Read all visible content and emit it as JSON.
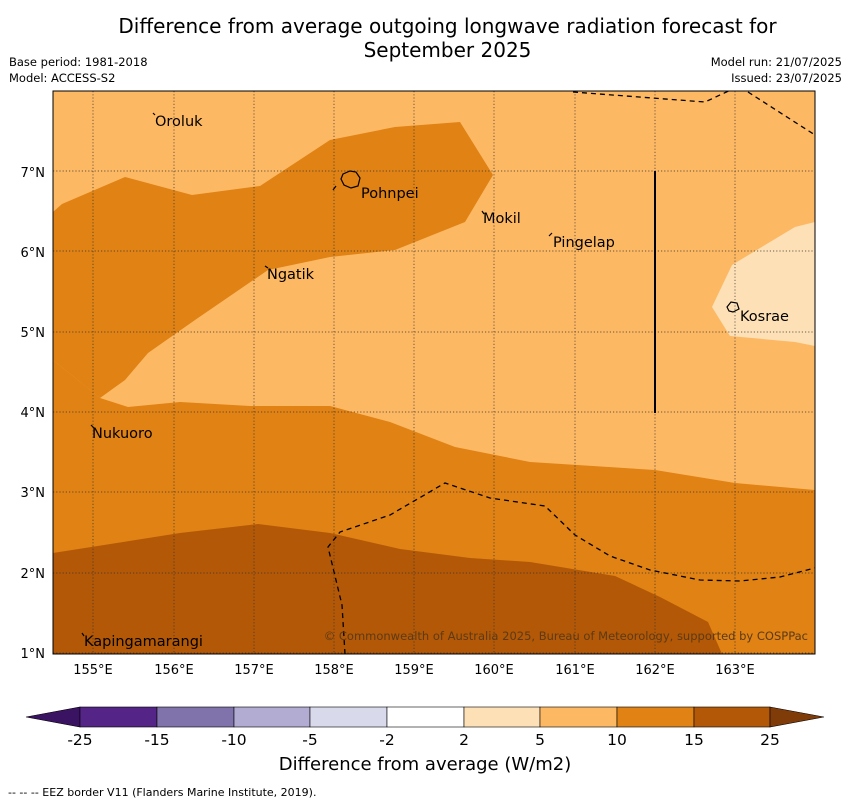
{
  "title_line1": "Difference from average outgoing longwave radiation forecast for",
  "title_line2": "September 2025",
  "base_period": "Base period: 1981-2018",
  "model": "Model: ACCESS-S2",
  "model_run": "Model run: 21/07/2025",
  "issued": "Issued: 23/07/2025",
  "copyright": "© Commonwealth of Australia 2025, Bureau of Meteorology, supported by COSPPac",
  "lat_labels": [
    "7°N",
    "6°N",
    "5°N",
    "4°N",
    "3°N",
    "2°N",
    "1°N"
  ],
  "lon_labels": [
    "155°E",
    "156°E",
    "157°E",
    "158°E",
    "159°E",
    "160°E",
    "161°E",
    "162°E",
    "163°E"
  ],
  "places": {
    "oroluk": "Oroluk",
    "pohnpei": "Pohnpei",
    "mokil": "Mokil",
    "pingelap": "Pingelap",
    "ngatik": "Ngatik",
    "kosrae": "Kosrae",
    "nukuoro": "Nukuoro",
    "kapingamarangi": "Kapingamarangi"
  },
  "colorbar": {
    "ticks": [
      "-25",
      "-15",
      "-10",
      "-5",
      "-2",
      "2",
      "5",
      "10",
      "15",
      "25"
    ],
    "colors": [
      "#3b1363",
      "#542586",
      "#8073ac",
      "#b2abd2",
      "#d8daeb",
      "#ffffff",
      "#fee0b6",
      "#fdb863",
      "#e08214",
      "#b35806",
      "#7f3b08"
    ],
    "title": "Difference from average (W/m2)"
  },
  "footnote": "-- -- -- EEZ border V11 (Flanders Marine Institute, 2019)."
}
